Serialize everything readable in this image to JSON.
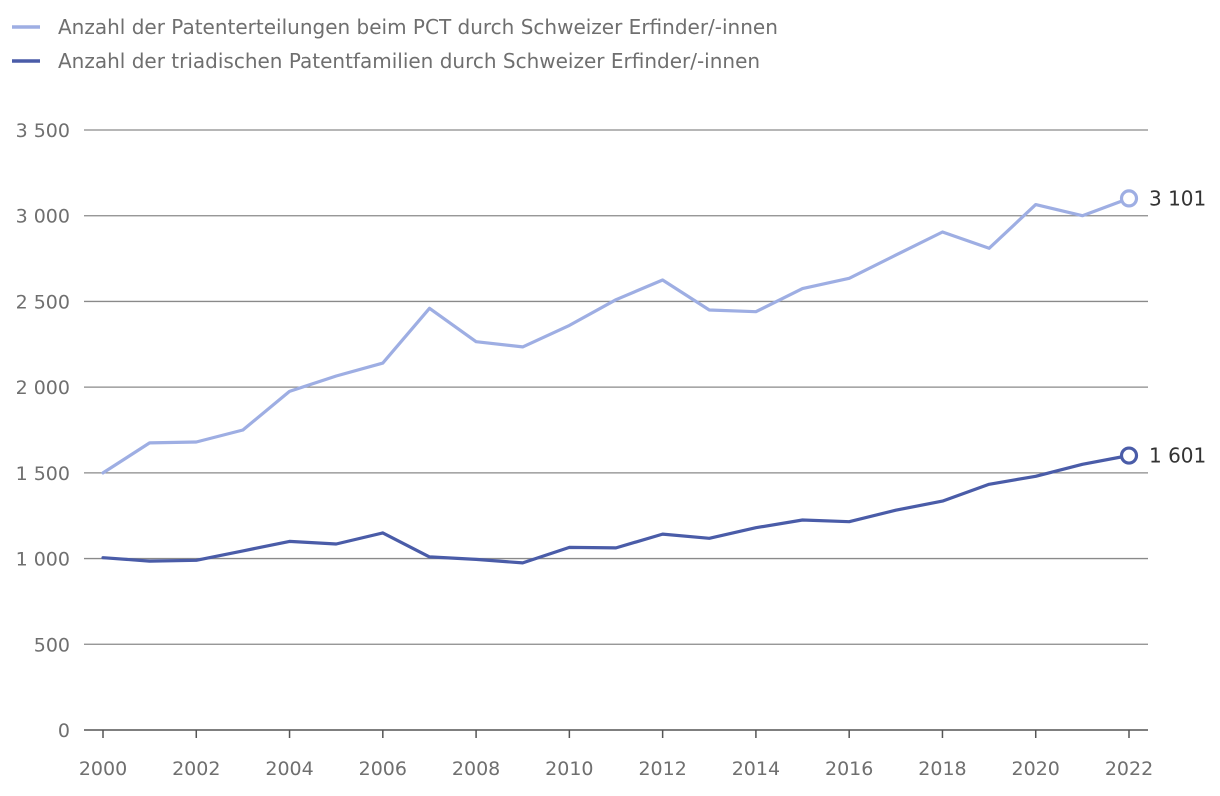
{
  "chart_data": {
    "type": "line",
    "title": "",
    "xlabel": "",
    "ylabel": "",
    "ylim": [
      0,
      3500
    ],
    "yticks": [
      0,
      500,
      1000,
      1500,
      2000,
      2500,
      3000,
      3500
    ],
    "ytick_labels": [
      "0",
      "500",
      "1 000",
      "1 500",
      "2 000",
      "2 500",
      "3 000",
      "3 500"
    ],
    "xlim": [
      2000,
      2022
    ],
    "xticks": [
      2000,
      2002,
      2004,
      2006,
      2008,
      2010,
      2012,
      2014,
      2016,
      2018,
      2020,
      2022
    ],
    "xtick_labels": [
      "2000",
      "2002",
      "2004",
      "2006",
      "2008",
      "2010",
      "2012",
      "2014",
      "2016",
      "2018",
      "2020",
      "2022"
    ],
    "grid": true,
    "legend_position": "top-left",
    "x": [
      2000,
      2001,
      2002,
      2003,
      2004,
      2005,
      2006,
      2007,
      2008,
      2009,
      2010,
      2011,
      2012,
      2013,
      2014,
      2015,
      2016,
      2017,
      2018,
      2019,
      2020,
      2021,
      2022
    ],
    "series": [
      {
        "name": "Anzahl der Patenterteilungen beim PCT durch Schweizer Erfinder/-innen",
        "color": "#9eaee3",
        "values": [
          1500,
          1675,
          1680,
          1750,
          1975,
          2065,
          2140,
          2460,
          2265,
          2235,
          2360,
          2510,
          2625,
          2450,
          2440,
          2575,
          2635,
          2770,
          2905,
          2810,
          3065,
          3000,
          3101
        ],
        "end_label": "3 101"
      },
      {
        "name": "Anzahl der triadischen Patentfamilien durch Schweizer Erfinder/-innen",
        "color": "#4a5ca8",
        "values": [
          1005,
          985,
          990,
          1045,
          1100,
          1085,
          1150,
          1010,
          995,
          975,
          1065,
          1062,
          1143,
          1118,
          1180,
          1225,
          1215,
          1282,
          1335,
          1433,
          1480,
          1550,
          1601
        ],
        "end_label": "1 601"
      }
    ]
  }
}
